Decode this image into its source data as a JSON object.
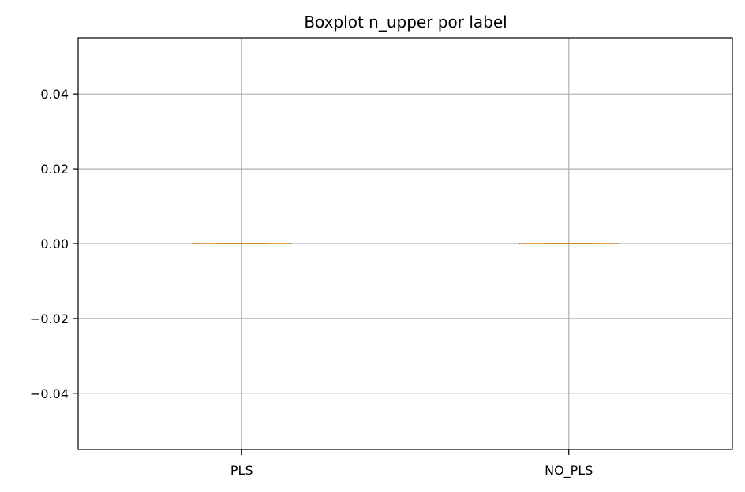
{
  "chart_data": {
    "type": "boxplot",
    "title": "Boxplot n_upper por label",
    "xlabel": "",
    "ylabel": "",
    "categories": [
      "PLS",
      "NO_PLS"
    ],
    "boxes": [
      {
        "label": "PLS",
        "min": 0,
        "q1": 0,
        "median": 0,
        "q3": 0,
        "max": 0
      },
      {
        "label": "NO_PLS",
        "min": 0,
        "q1": 0,
        "median": 0,
        "q3": 0,
        "max": 0
      }
    ],
    "ylim": [
      -0.055,
      0.055
    ],
    "yticks": [
      -0.04,
      -0.02,
      0.0,
      0.02,
      0.04
    ],
    "ytick_labels": [
      "−0.04",
      "−0.02",
      "0.00",
      "0.02",
      "0.04"
    ],
    "grid": true,
    "colors": {
      "box": "#000000",
      "median": "#f28e2b",
      "grid": "#b0b0b0",
      "axes": "#000000"
    }
  }
}
